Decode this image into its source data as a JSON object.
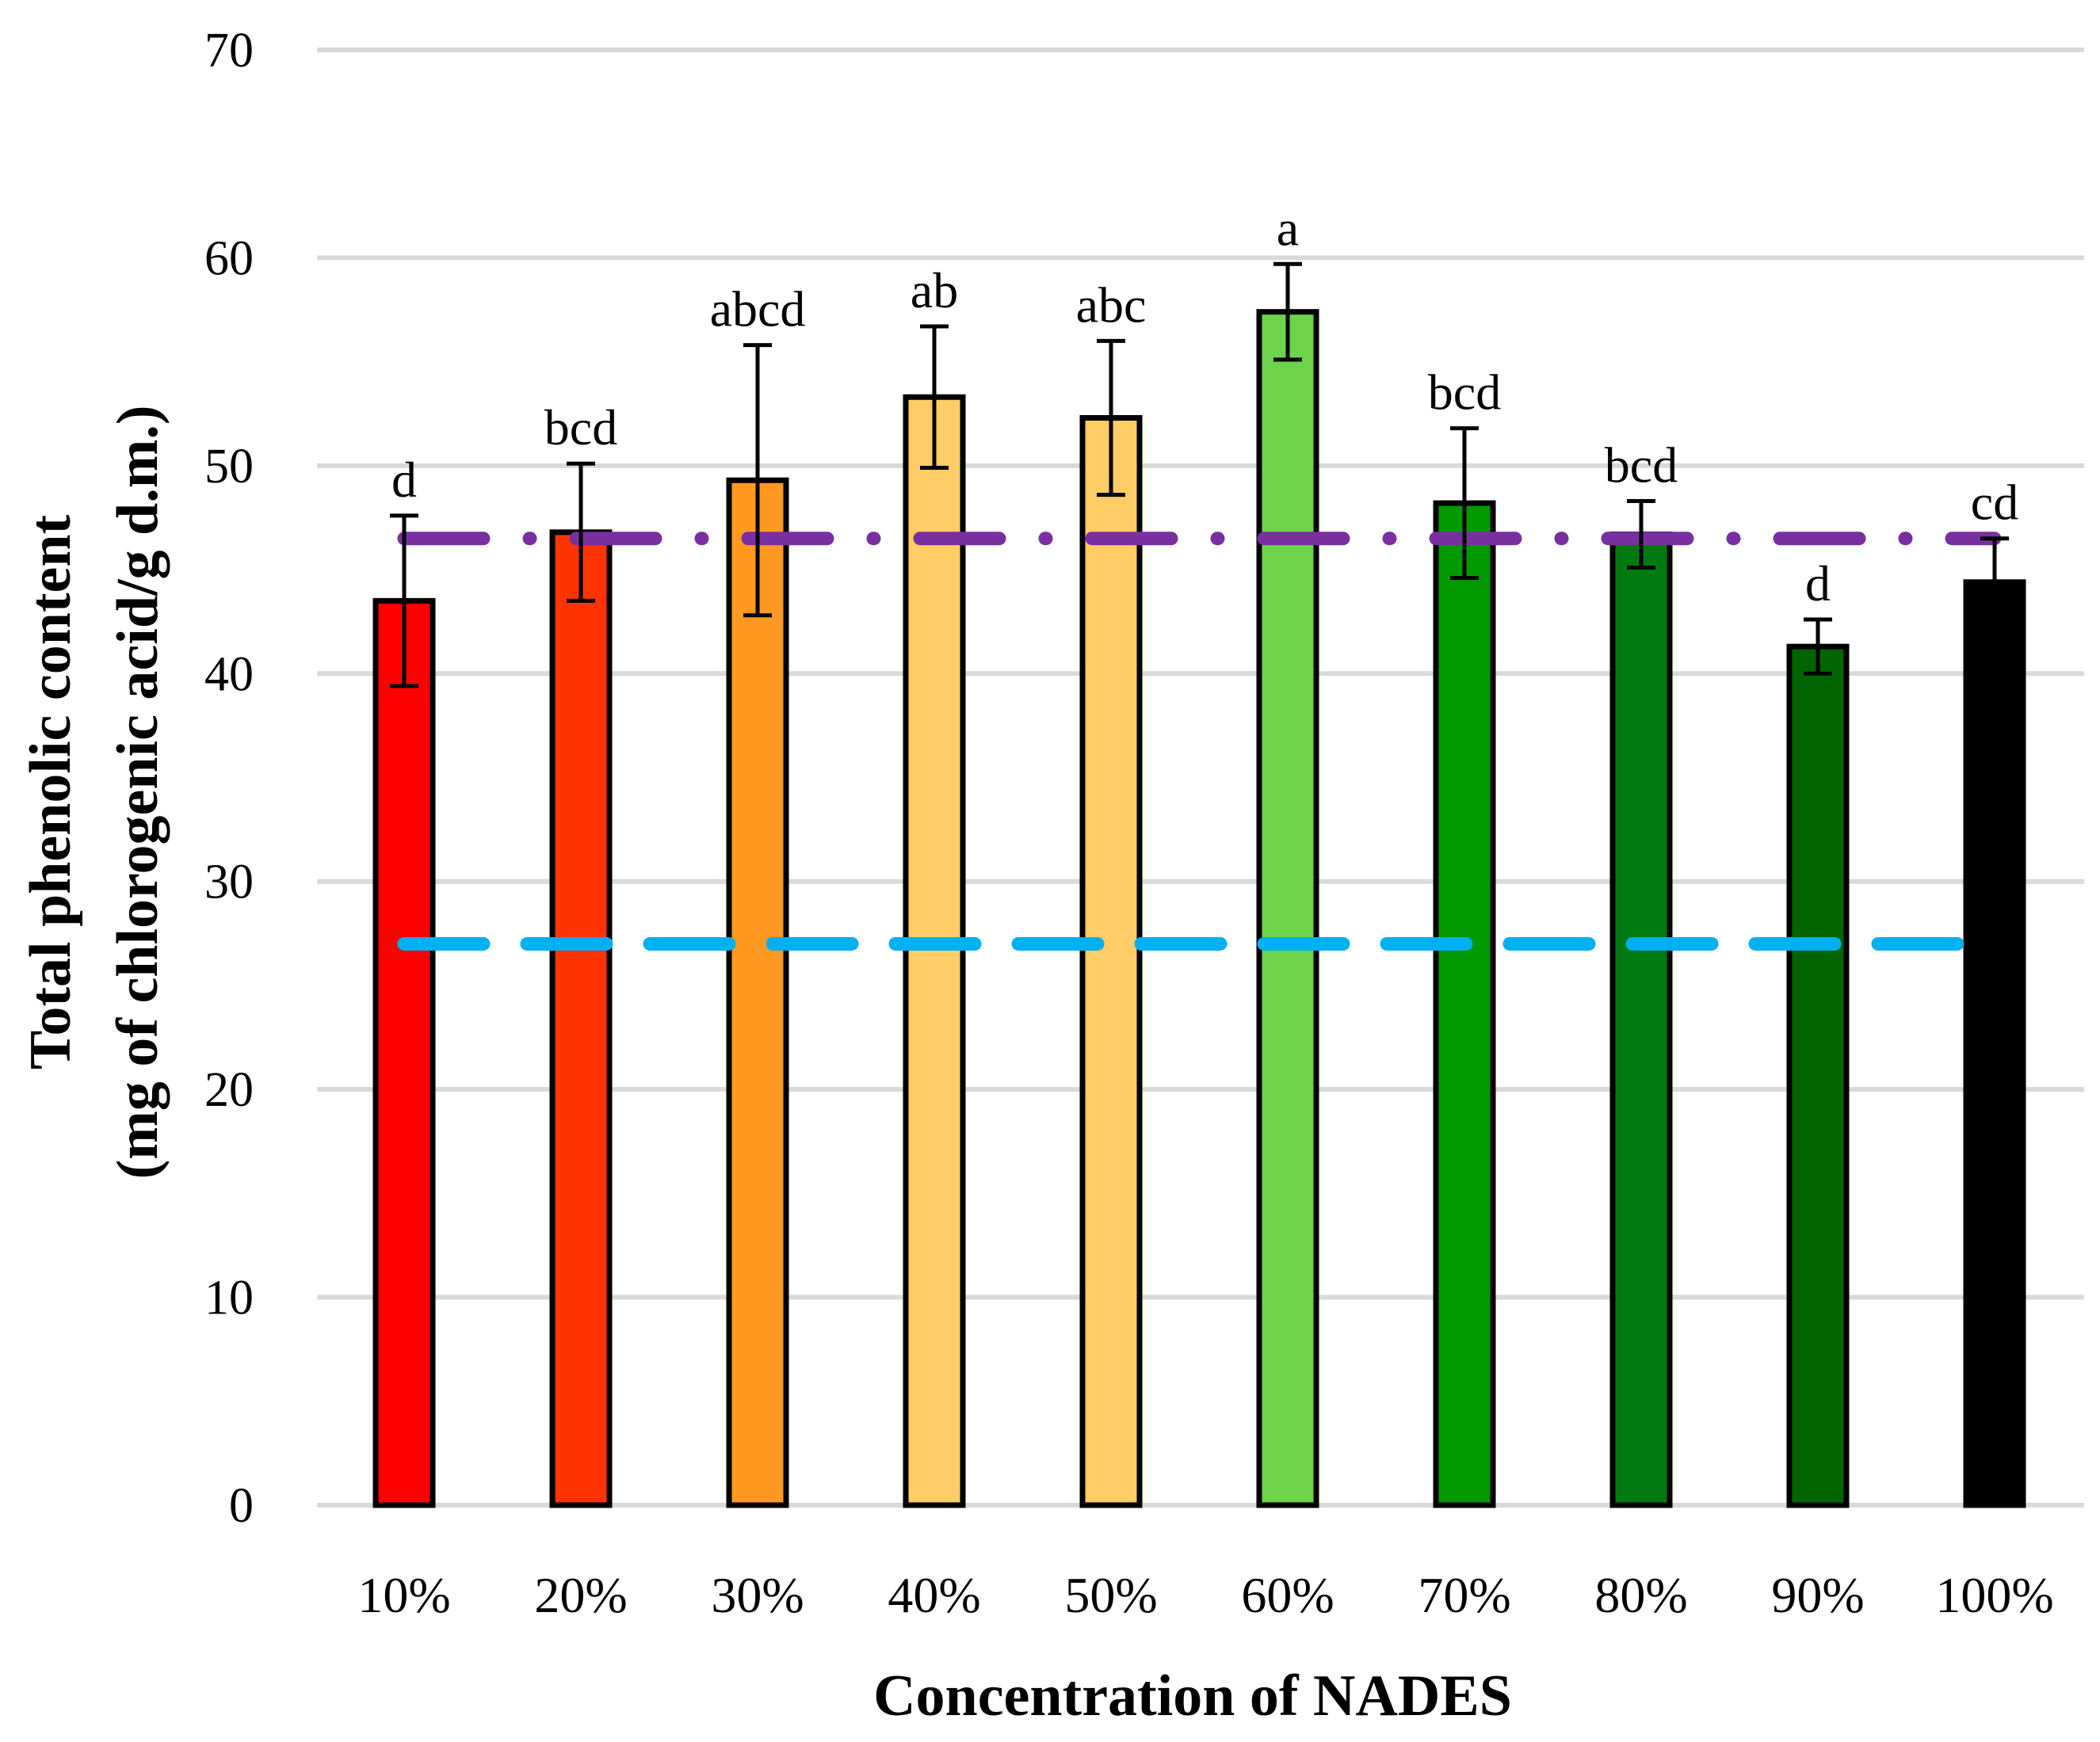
{
  "chart_data": {
    "type": "bar",
    "xlabel": "Concentration of NADES",
    "ylabel_line1": "Total phenolic content",
    "ylabel_line2": "(mg of chlorogenic acid/g d.m.)",
    "ylim": [
      0,
      70
    ],
    "yticks": [
      "0",
      "10",
      "20",
      "30",
      "40",
      "50",
      "60",
      "70"
    ],
    "ytick_values": [
      0,
      10,
      20,
      30,
      40,
      50,
      60,
      70
    ],
    "grid": true,
    "categories": [
      "10%",
      "20%",
      "30%",
      "40%",
      "50%",
      "60%",
      "70%",
      "80%",
      "90%",
      "100%"
    ],
    "values": [
      43.5,
      46.8,
      49.3,
      53.3,
      52.3,
      57.4,
      48.2,
      46.7,
      41.3,
      44.4
    ],
    "errors": [
      4.1,
      3.3,
      6.5,
      3.4,
      3.7,
      2.3,
      3.6,
      1.6,
      1.3,
      2.1
    ],
    "significance": [
      "d",
      "bcd",
      "abcd",
      "ab",
      "abc",
      "a",
      "bcd",
      "bcd",
      "d",
      "cd"
    ],
    "bar_colors": [
      "#FF0000",
      "#FF3300",
      "#FF9922",
      "#FFCC66",
      "#FFCC66",
      "#6DD34A",
      "#009900",
      "#007A10",
      "#006400",
      "#000000"
    ],
    "reference_lines": [
      {
        "value": 46.5,
        "style": "dash-dot",
        "color": "#7A2FA0"
      },
      {
        "value": 27.0,
        "style": "dashed",
        "color": "#00B0F0"
      }
    ]
  }
}
